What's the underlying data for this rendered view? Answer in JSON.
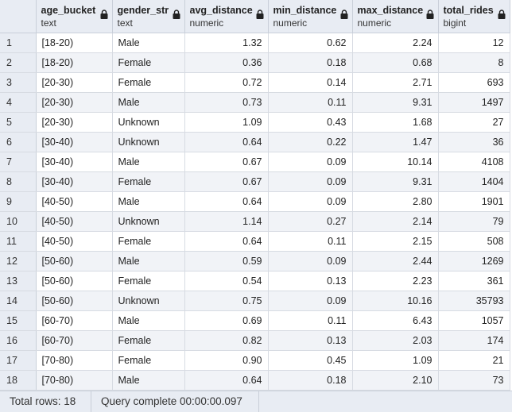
{
  "columns": [
    {
      "name": "age_bucket",
      "type": "text"
    },
    {
      "name": "gender_str",
      "type": "text"
    },
    {
      "name": "avg_distance",
      "type": "numeric"
    },
    {
      "name": "min_distance",
      "type": "numeric"
    },
    {
      "name": "max_distance",
      "type": "numeric"
    },
    {
      "name": "total_rides",
      "type": "bigint"
    }
  ],
  "rows": [
    [
      "1",
      "[18-20)",
      "Male",
      "1.32",
      "0.62",
      "2.24",
      "12"
    ],
    [
      "2",
      "[18-20)",
      "Female",
      "0.36",
      "0.18",
      "0.68",
      "8"
    ],
    [
      "3",
      "[20-30)",
      "Female",
      "0.72",
      "0.14",
      "2.71",
      "693"
    ],
    [
      "4",
      "[20-30)",
      "Male",
      "0.73",
      "0.11",
      "9.31",
      "1497"
    ],
    [
      "5",
      "[20-30)",
      "Unknown",
      "1.09",
      "0.43",
      "1.68",
      "27"
    ],
    [
      "6",
      "[30-40)",
      "Unknown",
      "0.64",
      "0.22",
      "1.47",
      "36"
    ],
    [
      "7",
      "[30-40)",
      "Male",
      "0.67",
      "0.09",
      "10.14",
      "4108"
    ],
    [
      "8",
      "[30-40)",
      "Female",
      "0.67",
      "0.09",
      "9.31",
      "1404"
    ],
    [
      "9",
      "[40-50)",
      "Male",
      "0.64",
      "0.09",
      "2.80",
      "1901"
    ],
    [
      "10",
      "[40-50)",
      "Unknown",
      "1.14",
      "0.27",
      "2.14",
      "79"
    ],
    [
      "11",
      "[40-50)",
      "Female",
      "0.64",
      "0.11",
      "2.15",
      "508"
    ],
    [
      "12",
      "[50-60)",
      "Male",
      "0.59",
      "0.09",
      "2.44",
      "1269"
    ],
    [
      "13",
      "[50-60)",
      "Female",
      "0.54",
      "0.13",
      "2.23",
      "361"
    ],
    [
      "14",
      "[50-60)",
      "Unknown",
      "0.75",
      "0.09",
      "10.16",
      "35793"
    ],
    [
      "15",
      "[60-70)",
      "Male",
      "0.69",
      "0.11",
      "6.43",
      "1057"
    ],
    [
      "16",
      "[60-70)",
      "Female",
      "0.82",
      "0.13",
      "2.03",
      "174"
    ],
    [
      "17",
      "[70-80)",
      "Female",
      "0.90",
      "0.45",
      "1.09",
      "21"
    ],
    [
      "18",
      "[70-80)",
      "Male",
      "0.64",
      "0.18",
      "2.10",
      "73"
    ]
  ],
  "status": {
    "total_rows": "Total rows: 18",
    "query": "Query complete 00:00:00.097"
  },
  "icons": {
    "column_lock": "lock-icon"
  },
  "colors": {
    "header_bg": "#e8ecf3",
    "stripe": "#f1f3f7",
    "border": "#c9cfd9"
  }
}
